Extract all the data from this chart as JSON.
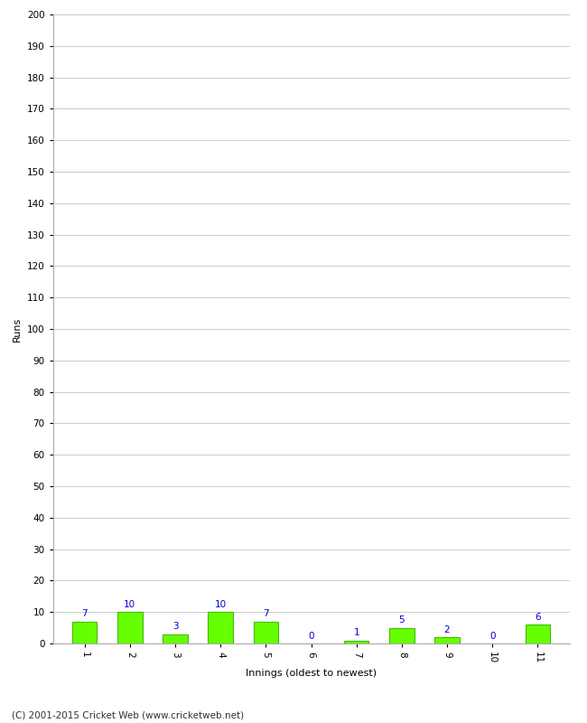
{
  "innings": [
    1,
    2,
    3,
    4,
    5,
    6,
    7,
    8,
    9,
    10,
    11
  ],
  "runs": [
    7,
    10,
    3,
    10,
    7,
    0,
    1,
    5,
    2,
    0,
    6
  ],
  "bar_color": "#66ff00",
  "bar_edge_color": "#44bb00",
  "xlabel": "Innings (oldest to newest)",
  "ylabel": "Runs",
  "ylim": [
    0,
    200
  ],
  "yticks": [
    0,
    10,
    20,
    30,
    40,
    50,
    60,
    70,
    80,
    90,
    100,
    110,
    120,
    130,
    140,
    150,
    160,
    170,
    180,
    190,
    200
  ],
  "value_label_color": "#0000cc",
  "value_label_fontsize": 7.5,
  "axis_label_fontsize": 8,
  "tick_fontsize": 7.5,
  "footer_text": "(C) 2001-2015 Cricket Web (www.cricketweb.net)",
  "footer_fontsize": 7.5,
  "background_color": "#ffffff",
  "grid_color": "#cccccc",
  "bar_width": 0.55
}
